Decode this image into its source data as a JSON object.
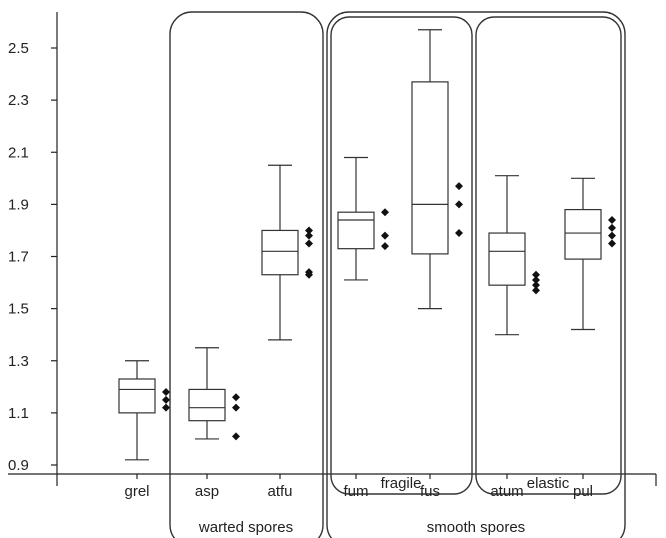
{
  "chart_data": {
    "type": "box",
    "ylim": [
      0.86,
      2.64
    ],
    "y_ticks": [
      "0.9",
      "1.1",
      "1.3",
      "1.5",
      "1.7",
      "1.9",
      "2.1",
      "2.3",
      "2.5"
    ],
    "y_tick_values": [
      0.9,
      1.1,
      1.3,
      1.5,
      1.7,
      1.9,
      2.1,
      2.3,
      2.5
    ],
    "categories": [
      "grel",
      "asp",
      "atfu",
      "fum",
      "fus",
      "atum",
      "pul"
    ],
    "boxes": [
      {
        "label": "grel",
        "min": 0.92,
        "q1": 1.1,
        "median": 1.19,
        "q3": 1.23,
        "max": 1.3,
        "points": [
          1.12,
          1.15,
          1.18
        ]
      },
      {
        "label": "asp",
        "min": 1.0,
        "q1": 1.07,
        "median": 1.12,
        "q3": 1.19,
        "max": 1.35,
        "points": [
          1.01,
          1.12,
          1.16
        ]
      },
      {
        "label": "atfu",
        "min": 1.38,
        "q1": 1.63,
        "median": 1.72,
        "q3": 1.8,
        "max": 2.05,
        "points": [
          1.63,
          1.64,
          1.75,
          1.78,
          1.8
        ]
      },
      {
        "label": "fum",
        "min": 1.61,
        "q1": 1.73,
        "median": 1.84,
        "q3": 1.87,
        "max": 2.08,
        "points": [
          1.74,
          1.78,
          1.87
        ]
      },
      {
        "label": "fus",
        "min": 1.5,
        "q1": 1.71,
        "median": 1.9,
        "q3": 2.37,
        "max": 2.57,
        "points": [
          1.79,
          1.9,
          1.97
        ]
      },
      {
        "label": "atum",
        "min": 1.4,
        "q1": 1.59,
        "median": 1.72,
        "q3": 1.79,
        "max": 2.01,
        "points": [
          1.57,
          1.59,
          1.61,
          1.63
        ]
      },
      {
        "label": "pul",
        "min": 1.42,
        "q1": 1.69,
        "median": 1.79,
        "q3": 1.88,
        "max": 2.0,
        "points": [
          1.75,
          1.78,
          1.81,
          1.84
        ]
      }
    ],
    "groups": [
      {
        "label": "warted spores",
        "members": [
          "asp",
          "atfu"
        ]
      },
      {
        "label": "smooth spores",
        "members": [
          "fum",
          "fus",
          "atum",
          "pul"
        ]
      },
      {
        "label": "fragile",
        "members": [
          "fum",
          "fus"
        ]
      },
      {
        "label": "elastic",
        "members": [
          "atum",
          "pul"
        ]
      }
    ]
  }
}
